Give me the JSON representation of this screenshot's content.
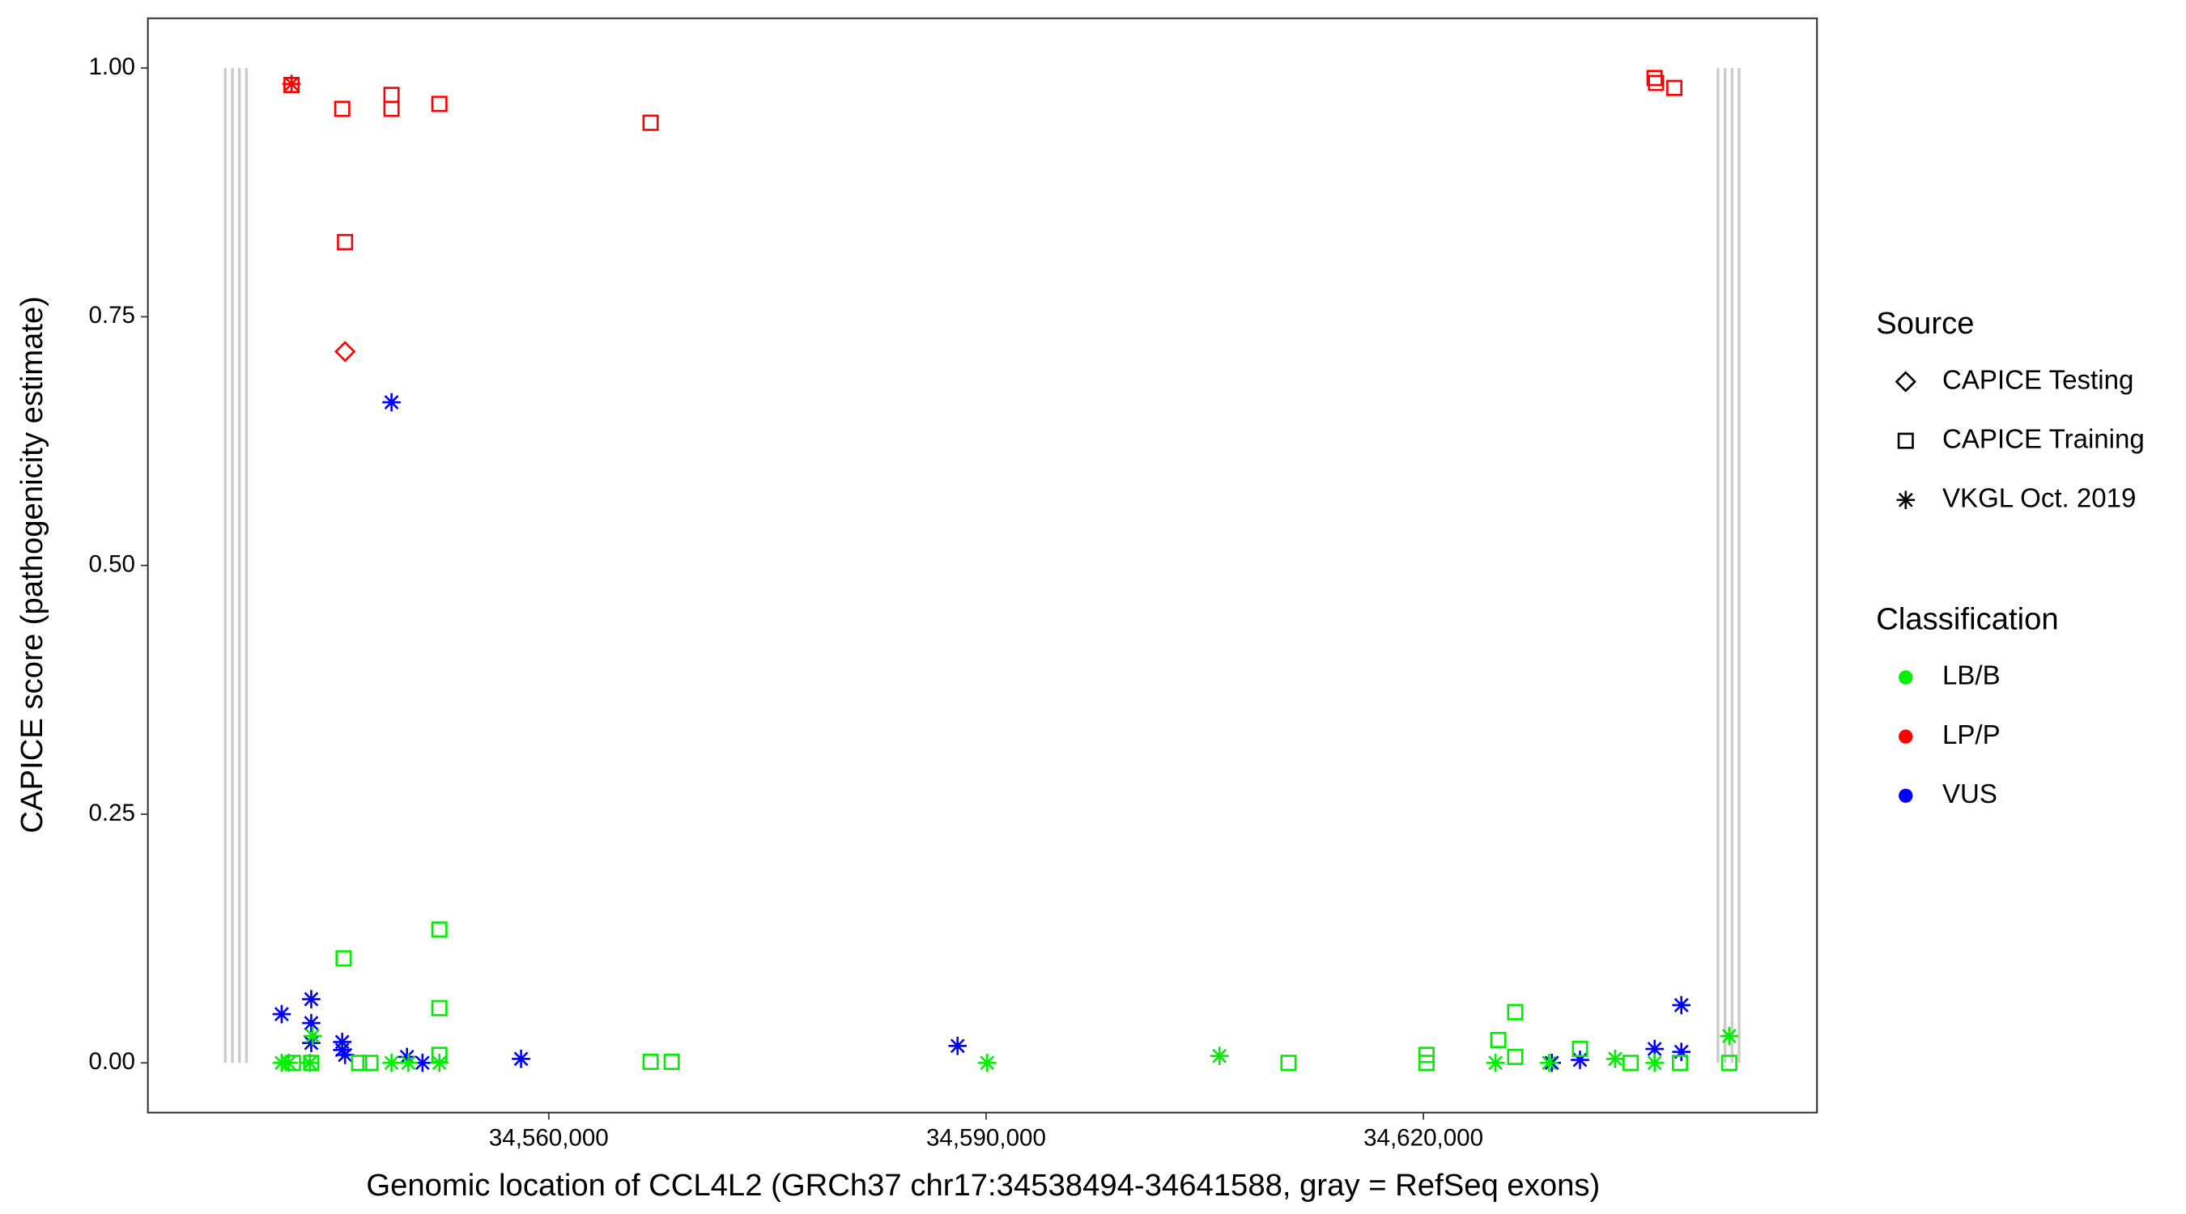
{
  "chart_data": {
    "type": "scatter",
    "x_label": "Genomic location of CCL4L2 (GRCh37 chr17:34538494-34641588, gray = RefSeq exons)",
    "y_label": "CAPICE score (pathogenicity estimate)",
    "xlim": [
      34532500,
      34647000
    ],
    "ylim": [
      -0.05,
      1.05
    ],
    "xticks": [
      {
        "value": 34560000,
        "label": "34,560,000"
      },
      {
        "value": 34590000,
        "label": "34,590,000"
      },
      {
        "value": 34620000,
        "label": "34,620,000"
      }
    ],
    "yticks": [
      {
        "value": 0,
        "label": "0.00"
      },
      {
        "value": 0.25,
        "label": "0.25"
      },
      {
        "value": 0.5,
        "label": "0.50"
      },
      {
        "value": 0.75,
        "label": "0.75"
      },
      {
        "value": 1,
        "label": "1.00"
      }
    ],
    "exons": [
      34537813,
      34538296,
      34538779,
      34539262,
      34640210,
      34640693,
      34641175,
      34641658
    ],
    "exon_color": "#cccccc",
    "legend_source_title": "Source",
    "sources": [
      {
        "name": "CAPICE Testing",
        "shape": "diamond"
      },
      {
        "name": "CAPICE Training",
        "shape": "square"
      },
      {
        "name": "VKGL Oct. 2019",
        "shape": "asterisk"
      }
    ],
    "legend_class_title": "Classification",
    "classifications": [
      {
        "name": "LB/B",
        "color": "#00ee00"
      },
      {
        "name": "LP/P",
        "color": "#ff0000"
      },
      {
        "name": "VUS",
        "color": "#0000ff"
      }
    ],
    "series": [
      {
        "source": "CAPICE Training",
        "classification": "LP/P",
        "x": [
          34542353,
          34545831,
          34546024,
          34549212,
          34549212,
          34552496,
          34566986,
          34635862,
          34635959,
          34637214
        ],
        "values": [
          0.983,
          0.959,
          0.825,
          0.973,
          0.959,
          0.964,
          0.945,
          0.99,
          0.985,
          0.98
        ]
      },
      {
        "source": "VKGL Oct. 2019",
        "classification": "LP/P",
        "x": [
          34542353
        ],
        "values": [
          0.984
        ]
      },
      {
        "source": "CAPICE Testing",
        "classification": "LP/P",
        "x": [
          34546024
        ],
        "values": [
          0.715
        ]
      },
      {
        "source": "VKGL Oct. 2019",
        "classification": "VUS",
        "x": [
          34549212,
          34541677,
          34543706,
          34543706,
          34543706,
          34545831,
          34545831,
          34546024,
          34550274,
          34551337,
          34558099,
          34588045,
          34628810,
          34630742,
          34635862,
          34637697,
          34637697
        ],
        "values": [
          0.664,
          0.049,
          0.064,
          0.04,
          0.02,
          0.021,
          0.013,
          0.008,
          0.006,
          0,
          0.004,
          0.017,
          0,
          0.003,
          0.014,
          0.058,
          0.011
        ]
      },
      {
        "source": "CAPICE Training",
        "classification": "LB/B",
        "x": [
          34545928,
          34552496,
          34552496,
          34552496,
          34546990,
          34547762,
          34566986,
          34568435,
          34610746,
          34620213,
          34620213,
          34625139,
          34626298,
          34626298,
          34630742,
          34634220,
          34637600,
          34640982,
          34542450,
          34543706
        ],
        "values": [
          0.105,
          0.134,
          0.055,
          0.008,
          0,
          0,
          0.001,
          0.001,
          0,
          0.008,
          0,
          0.023,
          0.051,
          0.006,
          0.014,
          0,
          0,
          0,
          0,
          0
        ]
      },
      {
        "source": "VKGL Oct. 2019",
        "classification": "LB/B",
        "x": [
          34541677,
          34542160,
          34543610,
          34543803,
          34549212,
          34550371,
          34552496,
          34590074,
          34606013,
          34624946,
          34628617,
          34633157,
          34635862,
          34640982
        ],
        "values": [
          0,
          0,
          0,
          0.027,
          0,
          0,
          0,
          0,
          0.007,
          0,
          0,
          0.004,
          0,
          0.027
        ]
      }
    ]
  }
}
